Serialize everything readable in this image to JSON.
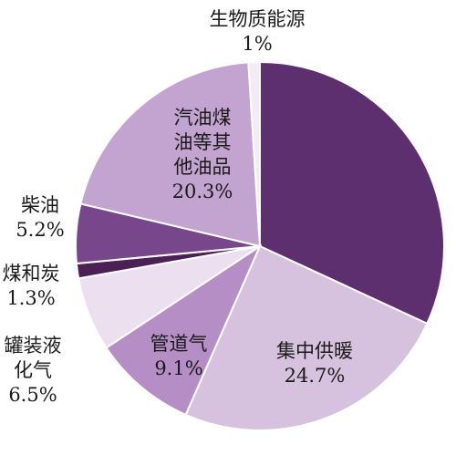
{
  "chart_data": {
    "type": "pie",
    "title": "",
    "slices": [
      {
        "label": "",
        "lines": [],
        "value": 31.9,
        "color": "#5e2f6e"
      },
      {
        "label": "集中供暖",
        "lines": [
          "集中供暖",
          "24.7%"
        ],
        "value": 24.7,
        "color": "#d6c1de"
      },
      {
        "label": "管道气",
        "lines": [
          "管道气",
          "9.1%"
        ],
        "value": 9.1,
        "color": "#b48ec4"
      },
      {
        "label": "罐装液化气",
        "lines": [
          "罐装液",
          "化气",
          "6.5%"
        ],
        "value": 6.5,
        "color": "#ecdfef"
      },
      {
        "label": "煤和炭",
        "lines": [
          "煤和炭",
          "1.3%"
        ],
        "value": 1.3,
        "color": "#4d1f57"
      },
      {
        "label": "柴油",
        "lines": [
          "柴油",
          "5.2%"
        ],
        "value": 5.2,
        "color": "#78468a"
      },
      {
        "label": "汽油煤油等其他油品",
        "lines": [
          "汽油煤",
          "油等其",
          "他油品",
          "20.3%"
        ],
        "value": 20.3,
        "color": "#c3a3cf"
      },
      {
        "label": "生物质能源",
        "lines": [
          "生物质能源",
          "1%"
        ],
        "value": 1.0,
        "color": "#f3eaf4"
      }
    ]
  }
}
